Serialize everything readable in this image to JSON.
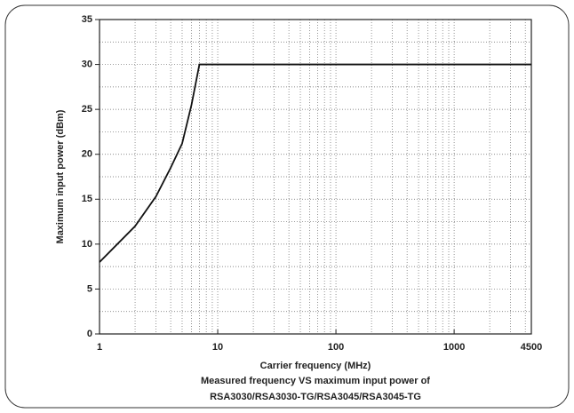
{
  "chart_data": {
    "type": "line",
    "xlabel": "Carrier frequency (MHz)",
    "ylabel": "Maximum input power (dBm)",
    "caption": [
      "Measured frequency VS maximum input power of",
      "RSA3030/RSA3030-TG/RSA3045/RSA3045-TG"
    ],
    "x": [
      1,
      2,
      3,
      4,
      5,
      6,
      7,
      4500
    ],
    "series": [
      {
        "color": "#111111",
        "values": [
          8,
          12,
          15.3,
          18.5,
          21.2,
          25.5,
          30,
          30
        ]
      }
    ],
    "xscale": "log",
    "xlim": [
      1,
      4500
    ],
    "xticks": [
      1,
      10,
      100,
      1000,
      4500
    ],
    "xminor": [
      2,
      3,
      4,
      5,
      6,
      7,
      8,
      9,
      20,
      30,
      40,
      50,
      60,
      70,
      80,
      90,
      200,
      300,
      400,
      500,
      600,
      700,
      800,
      900,
      2000,
      3000,
      4000
    ],
    "ylim": [
      0,
      35
    ],
    "yticks": [
      0,
      5,
      10,
      15,
      20,
      25,
      30,
      35
    ],
    "yminor": [
      2.5,
      7.5,
      12.5,
      17.5,
      22.5,
      27.5,
      32.5
    ],
    "grid": true
  }
}
